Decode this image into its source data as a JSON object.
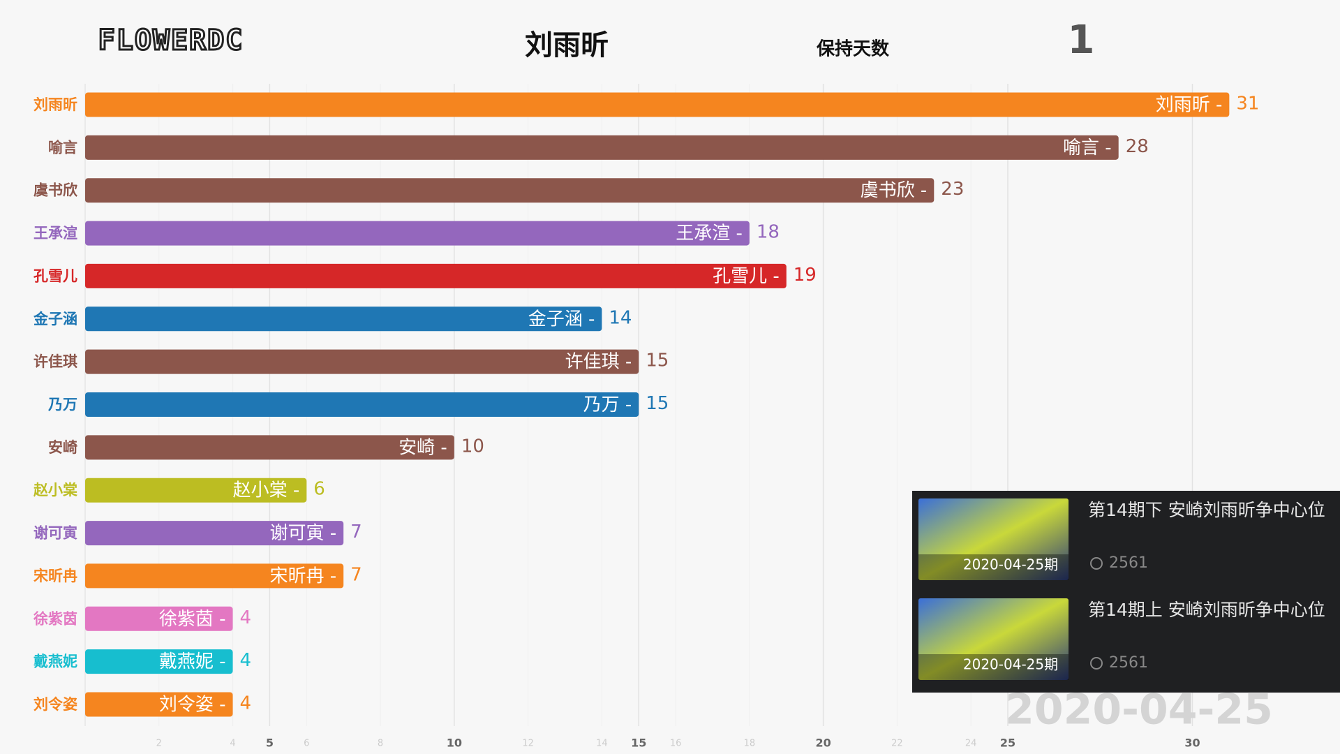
{
  "header": {
    "logo": "FLOWERDC",
    "leader": "刘雨昕",
    "hold_label": "保持天数",
    "hold_days": "1",
    "date": "2020-04-25"
  },
  "chart_data": {
    "type": "bar",
    "orientation": "horizontal",
    "categories": [
      "刘雨昕",
      "喻言",
      "虞书欣",
      "王承渲",
      "孔雪儿",
      "金子涵",
      "许佳琪",
      "乃万",
      "安崎",
      "赵小棠",
      "谢可寅",
      "宋昕冉",
      "徐紫茵",
      "戴燕妮",
      "刘令姿"
    ],
    "bar_labels": [
      "刘雨昕 -",
      "喻言 -",
      "虞书欣 -",
      "王承渲 -",
      "孔雪儿 -",
      "金子涵 -",
      "许佳琪 -",
      "乃万 -",
      "安崎 -",
      "赵小棠 -",
      "谢可寅 -",
      "宋昕冉 -",
      "徐紫茵 -",
      "戴燕妮 -",
      "刘令姿 -"
    ],
    "values": [
      31,
      28,
      23,
      18,
      19,
      14,
      15,
      15,
      10,
      6,
      7,
      7,
      4,
      4,
      4
    ],
    "colors": [
      "#f5851f",
      "#8c564b",
      "#8c564b",
      "#9467bd",
      "#d62728",
      "#1f77b4",
      "#8c564b",
      "#1f77b4",
      "#8c564b",
      "#bcbd22",
      "#9467bd",
      "#f5851f",
      "#e377c2",
      "#17becf",
      "#f5851f"
    ],
    "xlim": [
      0,
      34
    ],
    "xticks": [
      5,
      10,
      15,
      20,
      25,
      30
    ],
    "minor_xticks": [
      2,
      4,
      6,
      8,
      12,
      14,
      16,
      18,
      22,
      24
    ],
    "grid": true
  },
  "overlay": {
    "items": [
      {
        "title": "第14期下 安崎刘雨昕争中心位",
        "badge": "2020-04-25期",
        "views": "2561"
      },
      {
        "title": "第14期上 安崎刘雨昕争中心位",
        "badge": "2020-04-25期",
        "views": "2561"
      }
    ]
  }
}
